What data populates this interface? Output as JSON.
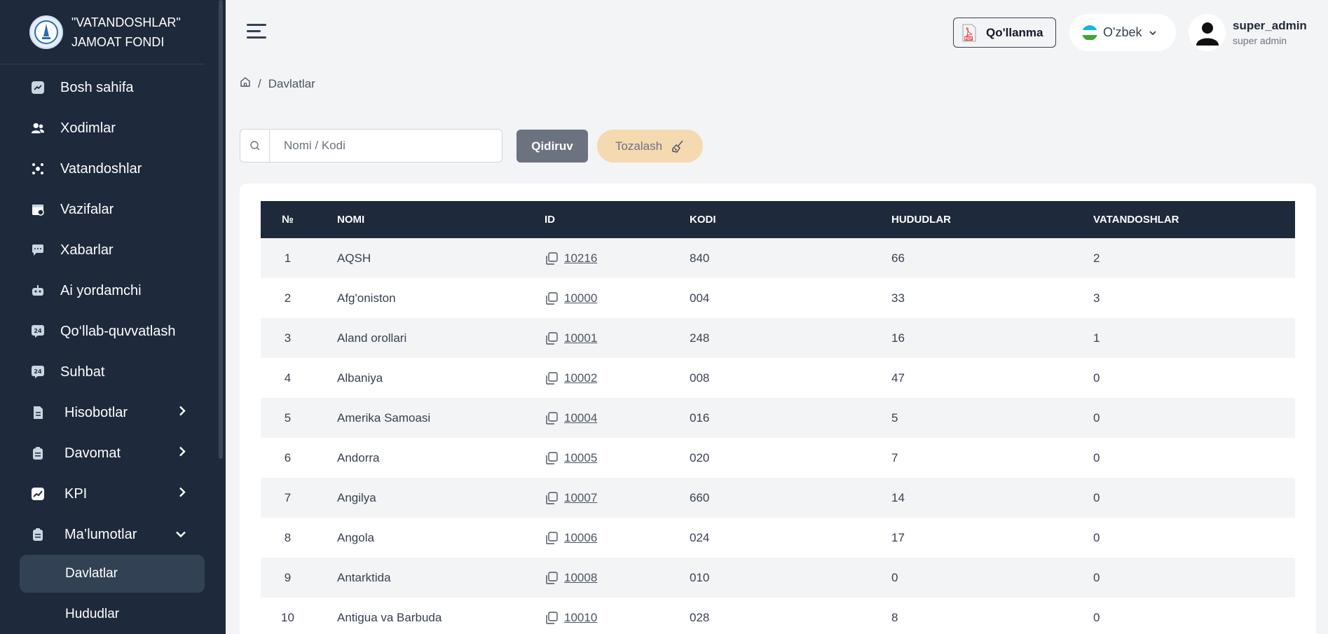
{
  "brand": {
    "line1": "\"VATANDOSHLAR\"",
    "line2": "JAMOAT FONDI",
    "logo_icon": "foundation-logo"
  },
  "sidebar": {
    "items": [
      {
        "label": "Bosh sahifa",
        "icon": "chart-icon"
      },
      {
        "label": "Xodimlar",
        "icon": "users-icon"
      },
      {
        "label": "Vatandoshlar",
        "icon": "people-icon"
      },
      {
        "label": "Vazifalar",
        "icon": "calendar-icon"
      },
      {
        "label": "Xabarlar",
        "icon": "chat-icon"
      },
      {
        "label": "Ai yordamchi",
        "icon": "robot-icon"
      },
      {
        "label": "Qo‘llab-quvvatlash",
        "icon": "support-24-icon"
      },
      {
        "label": "Suhbat",
        "icon": "chat-24-icon"
      }
    ],
    "groups": [
      {
        "label": "Hisobotlar",
        "icon": "report-icon",
        "expanded": false
      },
      {
        "label": "Davomat",
        "icon": "clipboard-icon",
        "expanded": false
      },
      {
        "label": "KPI",
        "icon": "kpi-icon",
        "expanded": false
      },
      {
        "label": "Ma’lumotlar",
        "icon": "database-icon",
        "expanded": true
      }
    ],
    "subitems": [
      {
        "label": "Davlatlar",
        "active": true
      },
      {
        "label": "Hududlar",
        "active": false
      }
    ]
  },
  "header": {
    "guide_label": "Qo'llanma",
    "language": "O'zbek",
    "user_name": "super_admin",
    "user_role": "super admin"
  },
  "breadcrumb": {
    "current": "Davlatlar",
    "separator": "/"
  },
  "search": {
    "placeholder": "Nomi / Kodi",
    "value": ""
  },
  "buttons": {
    "search": "Qidiruv",
    "clear": "Tozalash"
  },
  "table": {
    "columns": [
      "№",
      "NOMI",
      "ID",
      "KODI",
      "HUDUDLAR",
      "VATANDOSHLAR"
    ],
    "rows": [
      [
        "1",
        "AQSH",
        "10216",
        "840",
        "66",
        "2"
      ],
      [
        "2",
        "Afg'oniston",
        "10000",
        "004",
        "33",
        "3"
      ],
      [
        "3",
        "Aland orollari",
        "10001",
        "248",
        "16",
        "1"
      ],
      [
        "4",
        "Albaniya",
        "10002",
        "008",
        "47",
        "0"
      ],
      [
        "5",
        "Amerika Samoasi",
        "10004",
        "016",
        "5",
        "0"
      ],
      [
        "6",
        "Andorra",
        "10005",
        "020",
        "7",
        "0"
      ],
      [
        "7",
        "Angilya",
        "10007",
        "660",
        "14",
        "0"
      ],
      [
        "8",
        "Angola",
        "10006",
        "024",
        "17",
        "0"
      ],
      [
        "9",
        "Antarktida",
        "10008",
        "010",
        "0",
        "0"
      ],
      [
        "10",
        "Antigua va Barbuda",
        "10010",
        "028",
        "8",
        "0"
      ]
    ]
  },
  "colors": {
    "sidebar_bg": "#1e293b",
    "table_header_bg": "#1e293b",
    "clear_button_bg": "#f5d9b0",
    "search_button_bg": "#6b7280"
  }
}
